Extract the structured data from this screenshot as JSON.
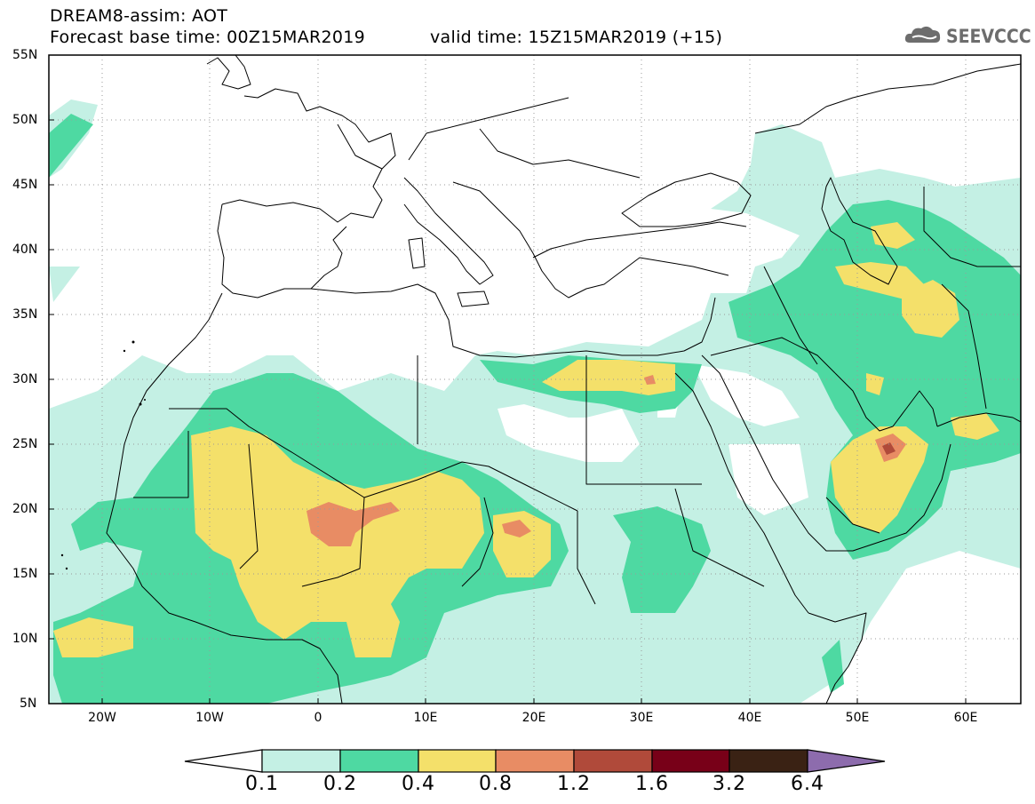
{
  "header": {
    "title": "DREAM8-assim: AOT",
    "base_time": "Forecast base time: 00Z15MAR2019",
    "valid_time": "valid time: 15Z15MAR2019 (+15)",
    "logo_text": "SEEVCCC"
  },
  "axes": {
    "lat_labels": [
      "55N",
      "50N",
      "45N",
      "40N",
      "35N",
      "30N",
      "25N",
      "20N",
      "15N",
      "10N",
      "5N"
    ],
    "lon_labels": [
      "20W",
      "10W",
      "0",
      "10E",
      "20E",
      "30E",
      "40E",
      "50E",
      "60E"
    ]
  },
  "colorbar": {
    "labels": [
      "0.1",
      "0.2",
      "0.4",
      "0.8",
      "1.2",
      "1.6",
      "3.2",
      "6.4"
    ],
    "colors": [
      "#c4f0e4",
      "#4ed9a2",
      "#f4e06a",
      "#e88c64",
      "#b04a3a",
      "#780018",
      "#3a2214",
      "#8d6cad"
    ]
  }
}
